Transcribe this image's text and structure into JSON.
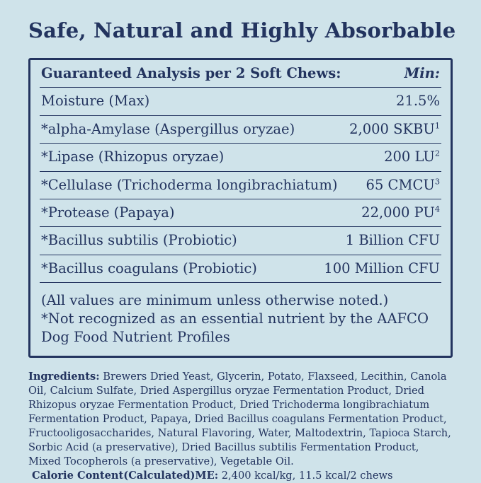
{
  "colors": {
    "background": "#cfe3ea",
    "ink": "#23345f"
  },
  "header": {
    "title": "Safe, Natural and Highly Absorbable"
  },
  "analysis": {
    "header_label": "Guaranteed Analysis per 2 Soft Chews:",
    "min_label": "Min:",
    "rows": [
      {
        "label": "Moisture (Max)",
        "value": "21.5%",
        "sup": ""
      },
      {
        "label": "*alpha-Amylase (Aspergillus oryzae)",
        "value": "2,000 SKBU",
        "sup": "1"
      },
      {
        "label": "*Lipase (Rhizopus oryzae)",
        "value": "200 LU",
        "sup": "2"
      },
      {
        "label": "*Cellulase (Trichoderma longibrachiatum)",
        "value": "65 CMCU",
        "sup": "3"
      },
      {
        "label": "*Protease (Papaya)",
        "value": "22,000 PU",
        "sup": "4"
      },
      {
        "label": "*Bacillus subtilis (Probiotic)",
        "value": "1 Billion CFU",
        "sup": ""
      },
      {
        "label": "*Bacillus coagulans (Probiotic)",
        "value": "100 Million CFU",
        "sup": ""
      }
    ],
    "footnotes": [
      "(All values are minimum unless otherwise noted.)",
      "*Not recognized as an essential nutrient by the AAFCO Dog Food Nutrient Profiles"
    ]
  },
  "ingredients": {
    "label": "Ingredients:",
    "text": " Brewers Dried Yeast, Glycerin, Potato, Flaxseed, Lecithin, Canola Oil, Calcium Sulfate, Dried Aspergillus oryzae Fermentation Product, Dried Rhizopus oryzae Fermentation Product, Dried Trichoderma longibrachiatum Fermentation Product, Papaya, Dried Bacillus coagulans Fermentation Product, Fructooligosaccharides, Natural Flavoring, Water, Maltodextrin, Tapioca Starch, Sorbic Acid (a preservative), Dried Bacillus subtilis Fermentation Product, Mixed Tocopherols (a preservative), Vegetable Oil."
  },
  "calories": {
    "label": "Calorie Content(Calculated)ME:",
    "text": " 2,400 kcal/kg, 11.5 kcal/2 chews"
  }
}
